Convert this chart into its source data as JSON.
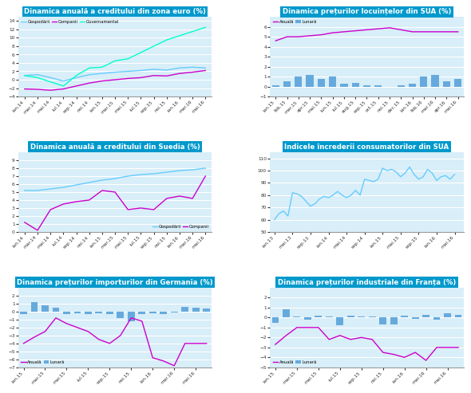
{
  "panel1": {
    "title": "Dinamica anuală a creditului din zona euro (%)",
    "x_labels": [
      "ian.14",
      "mar.14",
      "mai.14",
      "iul.14",
      "sep.14",
      "noi.14",
      "ian.15",
      "mar.15",
      "mai.15",
      "iul.15",
      "sep.15",
      "noi.15",
      "ian.16",
      "mar.16",
      "mai.16"
    ],
    "gospodarii": [
      1.0,
      1.2,
      0.5,
      -0.3,
      0.5,
      1.2,
      1.5,
      1.8,
      2.0,
      2.2,
      2.5,
      2.3,
      2.8,
      3.0,
      2.8
    ],
    "companii": [
      -2.2,
      -2.3,
      -2.5,
      -2.2,
      -1.5,
      -0.8,
      -0.3,
      0.0,
      0.3,
      0.5,
      1.0,
      0.9,
      1.5,
      1.8,
      2.2
    ],
    "guvernamental": [
      1.0,
      0.5,
      -0.5,
      -1.5,
      1.0,
      2.8,
      3.0,
      4.5,
      5.0,
      6.5,
      8.0,
      9.5,
      10.5,
      11.5,
      12.5
    ],
    "ylim": [
      -4,
      15
    ],
    "yticks": [
      -4,
      -2,
      0,
      2,
      4,
      6,
      8,
      10,
      12,
      14
    ]
  },
  "panel2": {
    "title": "Dinamica prețurilor locuințelor din SUA (%)",
    "x_labels": [
      "ian.15",
      "feb.15",
      "mar.15",
      "apr.15",
      "mai.15",
      "iun.15",
      "iul.15",
      "aug.15",
      "sep.15",
      "oct.15",
      "noi.15",
      "dec.15",
      "ian.16",
      "feb.16",
      "mar.16",
      "apr.16",
      "mai.16"
    ],
    "lunara": [
      0.1,
      0.5,
      1.0,
      1.2,
      0.8,
      1.0,
      0.3,
      0.4,
      0.1,
      0.1,
      0.0,
      0.1,
      0.3,
      1.0,
      1.2,
      0.5,
      0.8
    ],
    "anuala": [
      4.6,
      5.0,
      5.0,
      5.1,
      5.2,
      5.4,
      5.5,
      5.6,
      5.7,
      5.8,
      5.9,
      5.7,
      5.5,
      5.5,
      5.5,
      5.5,
      5.5
    ],
    "ylim": [
      -1,
      7
    ],
    "yticks": [
      -1,
      0,
      1,
      2,
      3,
      4,
      5,
      6
    ]
  },
  "panel3": {
    "title": "Dinamica anuală a creditului din Suedia (%)",
    "x_labels": [
      "ian.14",
      "mar.14",
      "mai.14",
      "iul.14",
      "sep.14",
      "noi.14",
      "ian.15",
      "mar.15",
      "mai.15",
      "iul.15",
      "sep.15",
      "noi.15",
      "ian.16",
      "mar.16",
      "mai.16"
    ],
    "gospodarii": [
      5.2,
      5.2,
      5.4,
      5.6,
      5.9,
      6.2,
      6.5,
      6.7,
      7.0,
      7.2,
      7.3,
      7.5,
      7.7,
      7.8,
      8.0
    ],
    "companii": [
      1.2,
      0.2,
      2.8,
      3.5,
      3.8,
      4.0,
      5.2,
      5.0,
      2.8,
      3.0,
      2.8,
      4.2,
      4.5,
      4.2,
      7.0
    ],
    "ylim": [
      0,
      10
    ],
    "yticks": [
      0,
      1,
      2,
      3,
      4,
      5,
      6,
      7,
      8,
      9
    ]
  },
  "panel4": {
    "title": "Indicele încrederii consumatorilor din SUA",
    "x_labels": [
      "ian.13",
      "mai.13",
      "sep.13",
      "ian.14",
      "mai.14",
      "sep.14",
      "ian.15",
      "mai.15",
      "sep.15",
      "ian.16",
      "mai.16"
    ],
    "values": [
      60,
      65,
      82,
      71,
      79,
      92,
      93,
      102,
      96,
      101,
      96
    ],
    "ylim": [
      50,
      115
    ],
    "yticks": [
      50,
      60,
      70,
      80,
      90,
      100,
      110
    ]
  },
  "panel5": {
    "title": "Dinamica prețurilor importurilor din Germania (%)",
    "x_labels": [
      "ian.15",
      "mar.15",
      "mai.15",
      "iul.15",
      "sep.15",
      "noi.15",
      "ian.16",
      "mar.16",
      "mai.16"
    ],
    "lunara": [
      -0.3,
      1.2,
      0.8,
      0.5,
      -0.3,
      -0.2,
      -0.8,
      -1.2,
      -0.3,
      -0.2,
      -0.2,
      0.5,
      -0.1,
      0.7,
      0.5,
      -0.2,
      0.5,
      0.4
    ],
    "lunara_x": [
      0,
      1,
      2,
      3,
      4,
      5,
      6,
      7,
      8,
      9,
      10,
      11,
      12,
      13,
      14,
      15,
      16,
      17
    ],
    "anuala": [
      -4.0,
      -3.2,
      -2.5,
      -0.8,
      -1.5,
      -2.0,
      -2.5,
      -4.0,
      -4.2,
      -3.0,
      -0.8,
      -1.2,
      -5.8,
      -6.2,
      -6.8,
      -3.8,
      -4.2,
      -4.0
    ],
    "ylim": [
      -7,
      3
    ],
    "yticks": [
      -7,
      -6,
      -5,
      -4,
      -3,
      -2,
      -1,
      0,
      1,
      2
    ],
    "x_tick_labels": [
      "ian.15",
      "mar.15",
      "mai.15",
      "iul.15",
      "sep.15",
      "noi.15",
      "ian.16",
      "mar.16",
      "mai.16"
    ],
    "x_tick_pos": [
      0,
      2,
      4,
      6,
      8,
      10,
      12,
      14,
      16
    ]
  },
  "panel6": {
    "title": "Dinamica prețurilor industriale din Franța (%)",
    "x_labels": [
      "ian.15",
      "feb.15",
      "mar.15",
      "apr.15",
      "mai.15",
      "iun.15",
      "iul.15",
      "aug.15",
      "sep.15",
      "oct.15",
      "noi.15",
      "dec.15",
      "ian.16",
      "feb.16",
      "mar.16",
      "apr.16",
      "mai.16",
      "iun.16"
    ],
    "lunara": [
      -0.5,
      0.8,
      0.1,
      -0.2,
      0.2,
      0.1,
      -0.8,
      0.2,
      0.1,
      0.1,
      -0.7,
      -0.7,
      0.2,
      -0.1,
      0.3,
      -0.2,
      0.4,
      0.3
    ],
    "anuala": [
      -2.7,
      -1.8,
      -1.0,
      -1.0,
      -1.0,
      -2.2,
      -1.8,
      -2.2,
      -2.0,
      -2.2,
      -3.5,
      -3.7,
      -4.0,
      -3.5,
      -4.3,
      -3.0,
      -3.0,
      -3.0
    ],
    "ylim": [
      -5,
      3
    ],
    "yticks": [
      -5,
      -4,
      -3,
      -2,
      -1,
      0,
      1,
      2
    ]
  },
  "title_bg_color": "#0099CC",
  "title_text_color": "white",
  "line_blue": "#66CCFF",
  "line_magenta": "#CC00CC",
  "line_cyan": "#00FFCC",
  "bar_blue": "#66AADD",
  "bg_color": "#D8EEF8"
}
